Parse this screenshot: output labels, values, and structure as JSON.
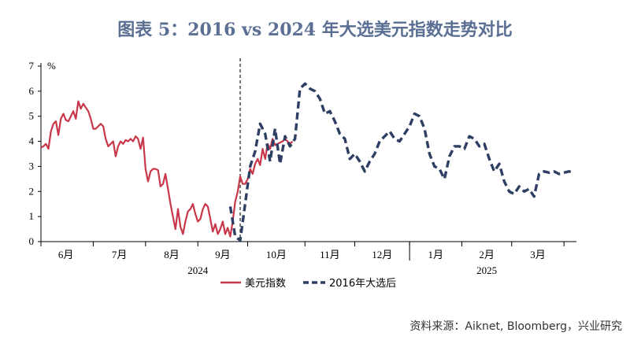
{
  "title": "图表 5：2016 vs 2024 年大选美元指数走势对比",
  "source": "资料来源：Aiknet, Bloomberg，兴业研究",
  "chart_data": {
    "type": "line",
    "title": "图表 5：2016 vs 2024 年大选美元指数走势对比",
    "xlabel": "",
    "ylabel": "%",
    "ylim": [
      0,
      7
    ],
    "yticks": [
      0,
      1,
      2,
      3,
      4,
      5,
      6,
      7
    ],
    "xlim": [
      0,
      215
    ],
    "x_month_labels": [
      "6月",
      "7月",
      "8月",
      "9月",
      "10月",
      "11月",
      "12月",
      "1月",
      "2月",
      "3月"
    ],
    "x_month_centers": [
      10,
      31.5,
      52.5,
      73,
      94.5,
      116,
      137,
      158.5,
      179,
      199.5
    ],
    "x_month_boundaries": [
      0,
      21,
      42,
      63,
      83,
      106,
      126,
      148,
      169,
      189,
      210
    ],
    "x_year_labels": [
      "2024",
      "2025"
    ],
    "x_year_centers": [
      63,
      179
    ],
    "x_year_boundary": 148,
    "event_line_x": 80,
    "grid": false,
    "legend_position": "bottom",
    "series": [
      {
        "name": "美元指数",
        "color": "#c8384a",
        "style": "solid",
        "x": [
          0,
          1,
          2,
          3,
          4,
          5,
          6,
          7,
          8,
          9,
          10,
          11,
          12,
          13,
          14,
          15,
          16,
          17,
          18,
          19,
          20,
          21,
          22,
          23,
          24,
          25,
          26,
          27,
          28,
          29,
          30,
          31,
          32,
          33,
          34,
          35,
          36,
          37,
          38,
          39,
          40,
          41,
          42,
          43,
          44,
          45,
          46,
          47,
          48,
          49,
          50,
          51,
          52,
          53,
          54,
          55,
          56,
          57,
          58,
          59,
          60,
          61,
          62,
          63,
          64,
          65,
          66,
          67,
          68,
          69,
          70,
          71,
          72,
          73,
          74,
          75,
          76,
          77,
          78,
          79,
          80,
          81,
          82,
          83,
          84,
          85,
          86,
          87,
          88,
          89,
          90,
          91,
          92,
          93,
          94,
          95,
          96,
          97,
          98,
          99,
          100,
          101
        ],
        "values": [
          3.75,
          3.8,
          3.9,
          3.7,
          4.4,
          4.7,
          4.8,
          4.25,
          4.9,
          5.1,
          4.85,
          4.8,
          5.0,
          5.2,
          4.9,
          5.6,
          5.3,
          5.5,
          5.35,
          5.2,
          4.9,
          4.5,
          4.5,
          4.6,
          4.7,
          4.6,
          4.1,
          3.8,
          3.9,
          4.0,
          3.4,
          3.8,
          4.0,
          3.9,
          4.05,
          4.0,
          4.1,
          4.0,
          4.2,
          4.1,
          3.7,
          4.15,
          2.9,
          2.4,
          2.8,
          2.9,
          2.9,
          2.85,
          2.2,
          2.3,
          2.7,
          2.1,
          1.5,
          1.0,
          0.5,
          1.3,
          0.6,
          0.3,
          0.8,
          1.2,
          1.3,
          1.5,
          1.1,
          0.8,
          0.9,
          1.3,
          1.5,
          1.4,
          0.9,
          0.4,
          0.7,
          0.3,
          0.5,
          0.8,
          0.3,
          0.55,
          0.2,
          0.8,
          1.6,
          2.0,
          2.6,
          2.3,
          2.3,
          2.5,
          2.9,
          2.7,
          3.1,
          3.3,
          3.05,
          3.7,
          3.3,
          3.9,
          3.7,
          4.1,
          3.85,
          3.9,
          3.95,
          4.0,
          4.1,
          4.0,
          3.9,
          4.0
        ]
      },
      {
        "name": "2016年大选后",
        "color": "#2e3f63",
        "style": "dashed",
        "x": [
          76,
          78,
          80,
          82,
          84,
          86,
          88,
          90,
          92,
          94,
          96,
          98,
          100,
          102,
          104,
          106,
          108,
          110,
          112,
          114,
          116,
          118,
          120,
          122,
          124,
          126,
          128,
          130,
          132,
          134,
          136,
          138,
          140,
          142,
          144,
          146,
          148,
          150,
          152,
          154,
          156,
          158,
          160,
          162,
          164,
          166,
          168,
          170,
          172,
          174,
          176,
          178,
          180,
          182,
          184,
          186,
          188,
          190,
          192,
          194,
          196,
          198,
          200,
          202,
          204,
          206,
          208,
          210,
          212,
          214
        ],
        "values": [
          1.4,
          0.2,
          0.05,
          1.5,
          3.0,
          3.6,
          4.7,
          4.3,
          3.2,
          4.5,
          3.1,
          4.2,
          3.8,
          4.1,
          6.1,
          6.3,
          6.1,
          6.0,
          5.7,
          5.1,
          5.2,
          4.8,
          4.3,
          4.1,
          3.3,
          3.5,
          3.2,
          2.8,
          3.2,
          3.5,
          4.0,
          4.2,
          4.4,
          4.1,
          4.0,
          4.3,
          4.6,
          5.1,
          5.0,
          4.5,
          3.5,
          3.0,
          2.9,
          2.5,
          3.4,
          3.8,
          3.8,
          3.7,
          4.2,
          4.1,
          3.8,
          3.9,
          3.3,
          2.8,
          3.1,
          2.4,
          2.0,
          1.9,
          2.2,
          2.0,
          2.1,
          1.8,
          2.7,
          2.8,
          2.75,
          2.8,
          2.7,
          2.75,
          2.8,
          2.75
        ]
      }
    ]
  }
}
